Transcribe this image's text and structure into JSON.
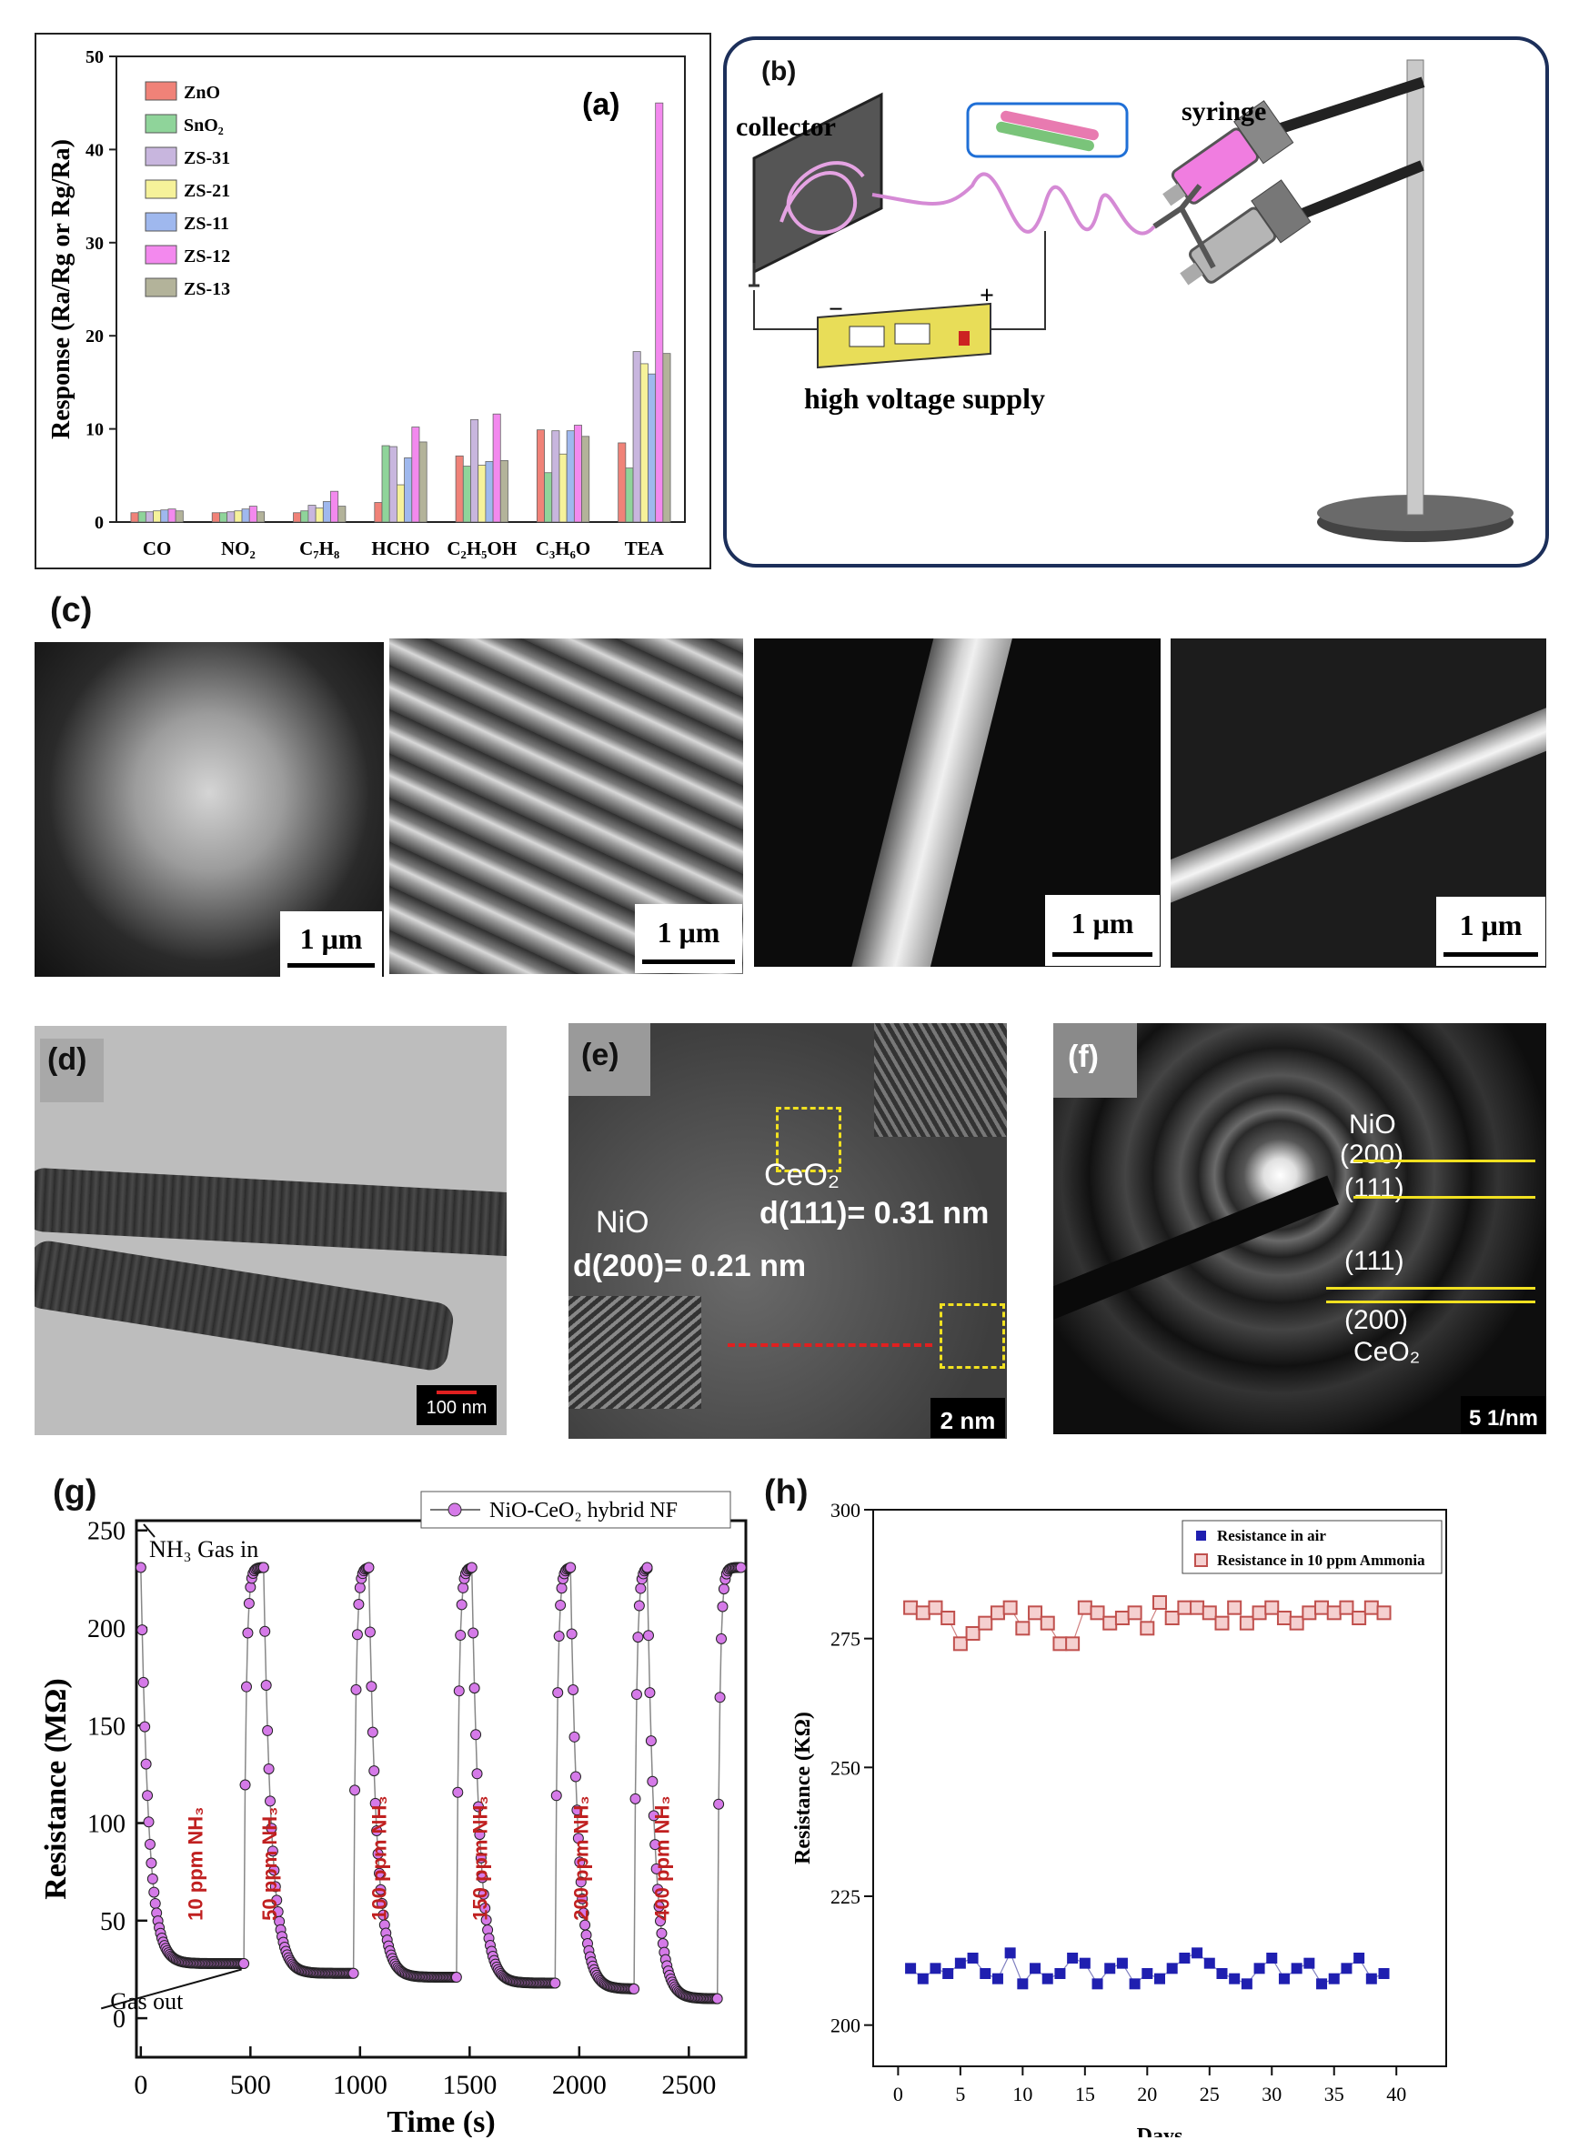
{
  "panels": {
    "a": {
      "label": "(a)",
      "legend": [
        "ZnO",
        "SnO₂",
        "ZS-31",
        "ZS-21",
        "ZS-11",
        "ZS-12",
        "ZS-13"
      ],
      "colors": [
        "#f08278",
        "#8fd49a",
        "#c8b6de",
        "#f6f29a",
        "#9fb8ee",
        "#f389ee",
        "#b3b39a"
      ]
    },
    "b": {
      "label": "(b)",
      "collector": "collector",
      "syringe": "syringe",
      "supply": "high voltage supply",
      "minus": "−",
      "plus": "+"
    },
    "c": {
      "label": "(c)",
      "scalebars": [
        "1 μm",
        "1 μm",
        "1 μm",
        "1 μm"
      ]
    },
    "d": {
      "label": "(d)",
      "scale": "100 nm"
    },
    "e": {
      "label": "(e)",
      "ceo2": "CeO₂",
      "ceo2_d": "d(111)= 0.31 nm",
      "nio": "NiO",
      "nio_d": "d(200)= 0.21 nm",
      "scale": "2 nm"
    },
    "f": {
      "label": "(f)",
      "nio": "NiO",
      "nio200": "(200)",
      "nio111": "(111)",
      "ceo111": "(111)",
      "ceo200": "(200)",
      "ceo2": "CeO₂",
      "scale": "5 1/nm"
    },
    "g": {
      "label": "(g)",
      "gas_in": "NH₃ Gas in",
      "gas_out": "Gas out",
      "pulse_labels": [
        "10 ppm NH₃",
        "50 ppm NH₃",
        "100 ppm NH₃",
        "150 ppm NH₃",
        "200 ppm NH₃",
        "400 ppm NH₃"
      ],
      "color": "#d57ae8"
    },
    "h": {
      "label": "(h)",
      "series_colors": [
        "#1f1fb0",
        "#c0504d"
      ]
    }
  },
  "chart_data": [
    {
      "type": "bar",
      "panel": "a",
      "ylabel": "Response (Ra/Rg or Rg/Ra)",
      "ylim": [
        0,
        50
      ],
      "yticks": [
        "0",
        "10",
        "20",
        "30",
        "40",
        "50"
      ],
      "categories": [
        "CO",
        "NO₂",
        "C₇H₈",
        "HCHO",
        "C₂H₅OH",
        "C₃H₆O",
        "TEA"
      ],
      "series": [
        {
          "name": "ZnO",
          "values": [
            1.0,
            1.0,
            1.0,
            2.1,
            7.1,
            9.9,
            8.5
          ]
        },
        {
          "name": "SnO₂",
          "values": [
            1.1,
            1.0,
            1.2,
            8.2,
            6.0,
            5.3,
            5.8
          ]
        },
        {
          "name": "ZS-31",
          "values": [
            1.1,
            1.1,
            1.8,
            8.1,
            11.0,
            9.8,
            18.3
          ]
        },
        {
          "name": "ZS-21",
          "values": [
            1.2,
            1.2,
            1.5,
            4.0,
            6.1,
            7.3,
            17.0
          ]
        },
        {
          "name": "ZS-11",
          "values": [
            1.3,
            1.4,
            2.2,
            6.9,
            6.5,
            9.8,
            15.9
          ]
        },
        {
          "name": "ZS-12",
          "values": [
            1.4,
            1.7,
            3.3,
            10.2,
            11.6,
            10.4,
            45.0
          ]
        },
        {
          "name": "ZS-13",
          "values": [
            1.2,
            1.1,
            1.7,
            8.6,
            6.6,
            9.2,
            18.1
          ]
        }
      ]
    },
    {
      "type": "line",
      "panel": "g",
      "xlabel": "Time (s)",
      "ylabel": "Resistance (MΩ)",
      "xlim": [
        -20,
        2760
      ],
      "ylim": [
        -20,
        255
      ],
      "xticks": [
        0,
        500,
        1000,
        1500,
        2000,
        2500
      ],
      "yticks": [
        0,
        50,
        100,
        150,
        200,
        250
      ],
      "series": [
        {
          "name": "NiO-CeO₂ hybrid NF"
        }
      ],
      "cycles": [
        {
          "on": 0,
          "off": 470,
          "rmin": 28
        },
        {
          "on": 560,
          "off": 970,
          "rmin": 23
        },
        {
          "on": 1040,
          "off": 1440,
          "rmin": 21
        },
        {
          "on": 1510,
          "off": 1890,
          "rmin": 18
        },
        {
          "on": 1960,
          "off": 2250,
          "rmin": 15
        },
        {
          "on": 2310,
          "off": 2630,
          "rmin": 10
        }
      ],
      "r_air": 231
    },
    {
      "type": "scatter",
      "panel": "h",
      "xlabel": "Days",
      "ylabel": "Resistance (KΩ)",
      "xlim": [
        -2,
        44
      ],
      "ylim": [
        192,
        300
      ],
      "xticks": [
        0,
        5,
        10,
        15,
        20,
        25,
        30,
        35,
        40
      ],
      "yticks": [
        200,
        225,
        250,
        275,
        300
      ],
      "x": [
        1,
        2,
        3,
        4,
        5,
        6,
        7,
        8,
        9,
        10,
        11,
        12,
        13,
        14,
        15,
        16,
        17,
        18,
        19,
        20,
        21,
        22,
        23,
        24,
        25,
        26,
        27,
        28,
        29,
        30,
        31,
        32,
        33,
        34,
        35,
        36,
        37,
        38,
        39
      ],
      "series": [
        {
          "name": "Resistance in air",
          "values": [
            211,
            209,
            211,
            210,
            212,
            213,
            210,
            209,
            214,
            208,
            211,
            209,
            210,
            213,
            212,
            208,
            211,
            212,
            208,
            210,
            209,
            211,
            213,
            214,
            212,
            210,
            209,
            208,
            211,
            213,
            209,
            211,
            212,
            208,
            209,
            211,
            213,
            209,
            210
          ]
        },
        {
          "name": "Resistance in 10 ppm Ammonia",
          "values": [
            281,
            280,
            281,
            279,
            274,
            276,
            278,
            280,
            281,
            277,
            280,
            278,
            274,
            274,
            281,
            280,
            278,
            279,
            280,
            277,
            282,
            279,
            281,
            281,
            280,
            278,
            281,
            278,
            280,
            281,
            279,
            278,
            280,
            281,
            280,
            281,
            279,
            281,
            280
          ]
        }
      ]
    }
  ]
}
